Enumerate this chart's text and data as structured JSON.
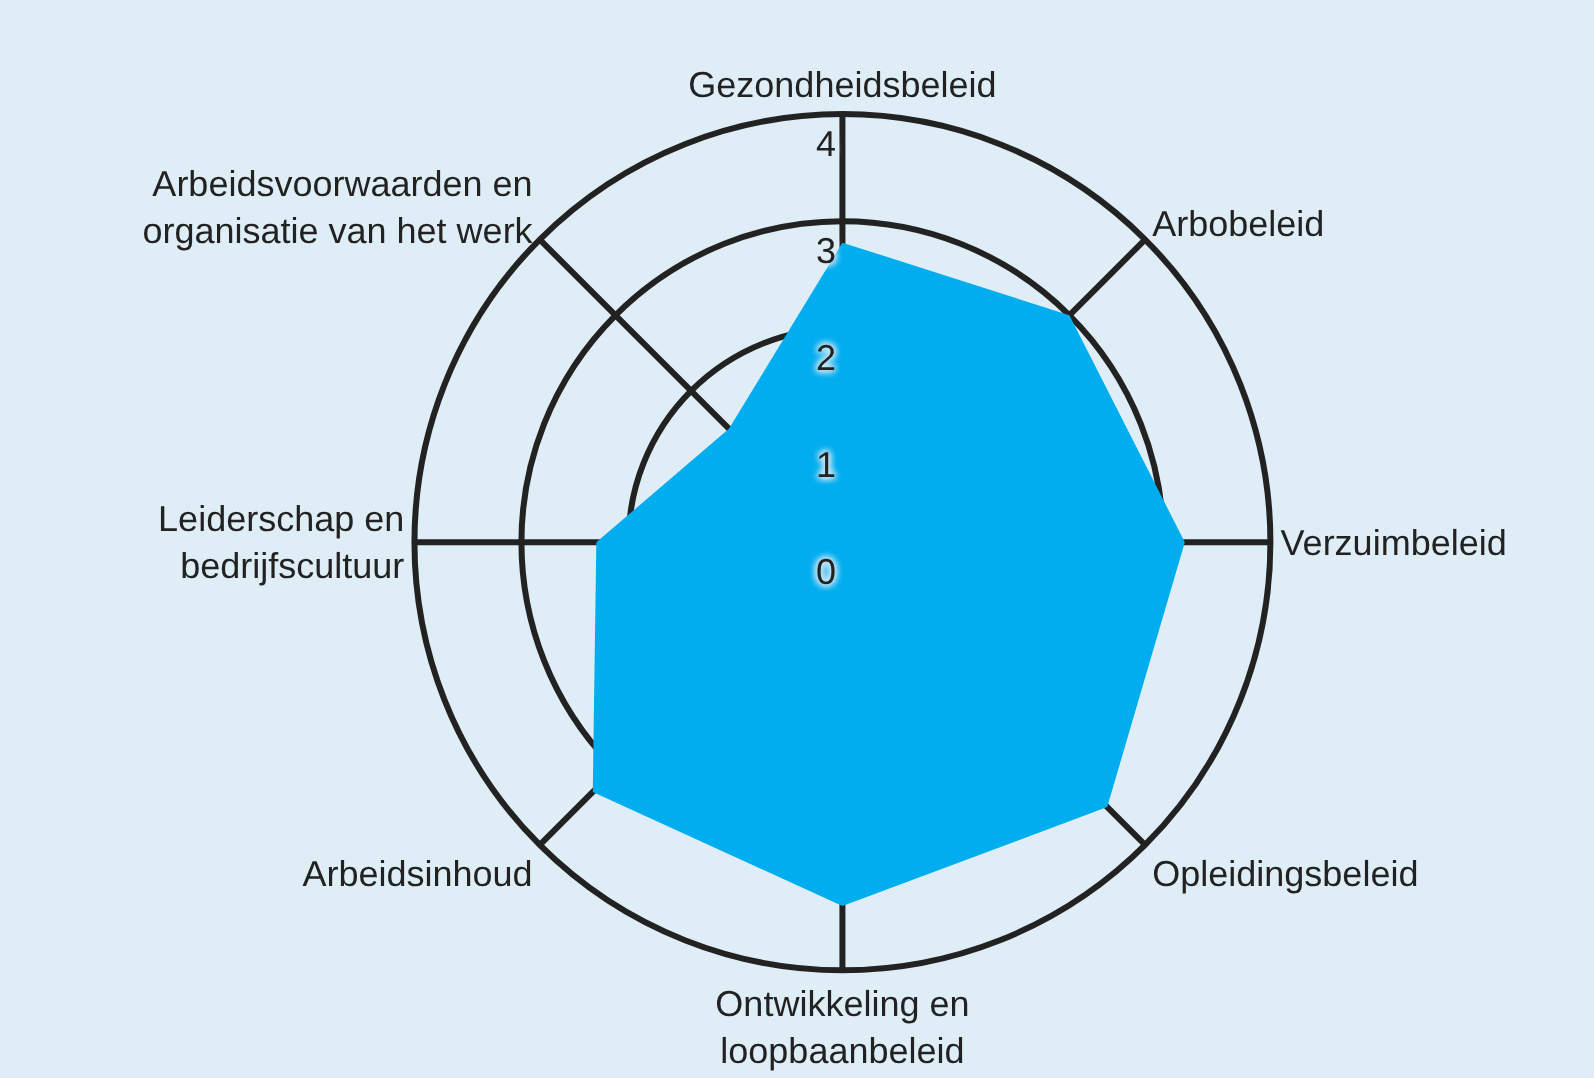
{
  "chart_data": {
    "type": "radar",
    "categories": [
      "Gezondheidsbeleid",
      "Arbobeleid",
      "Verzuimbeleid",
      "Opleidingsbeleid",
      "Ontwikkeling en loopbaanbeleid",
      "Arbeidsinhoud",
      "Leiderschap en bedrijfscultuur",
      "Arbeidsvoorwaarden en organisatie van het werk"
    ],
    "series": [
      {
        "color": "#00adef",
        "values": [
          2.8,
          3.0,
          3.2,
          3.5,
          3.4,
          3.3,
          2.3,
          1.5
        ]
      }
    ],
    "ylim": [
      0,
      4
    ],
    "yticks": [
      0,
      1,
      2,
      3,
      4
    ],
    "grid": true
  }
}
